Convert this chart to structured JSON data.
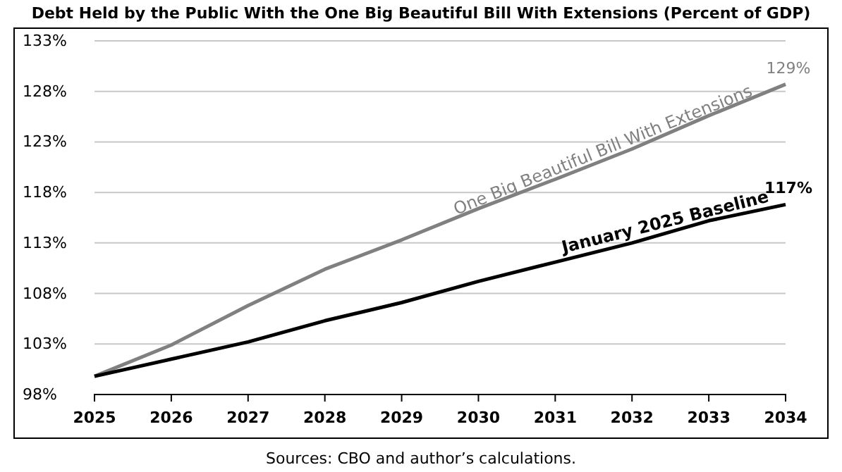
{
  "chart_data": {
    "type": "line",
    "title": "Debt Held by the Public With the One Big Beautiful Bill With Extensions (Percent of GDP)",
    "annotations": [
      "Sources: CBO and author’s calculations."
    ],
    "x": [
      2025,
      2026,
      2027,
      2028,
      2029,
      2030,
      2031,
      2032,
      2033,
      2034
    ],
    "series": [
      {
        "name": "One Big Beautiful Bill With Extensions",
        "color": "#808080",
        "values": [
          99.8,
          102.9,
          106.8,
          110.4,
          113.3,
          116.4,
          119.3,
          122.3,
          125.6,
          128.7
        ],
        "value_labels": [
          null,
          null,
          null,
          null,
          null,
          null,
          null,
          null,
          null,
          "129%"
        ]
      },
      {
        "name": "January 2025 Baseline",
        "color": "#000000",
        "values": [
          99.8,
          101.5,
          103.2,
          105.3,
          107.1,
          109.2,
          111.1,
          113.0,
          115.2,
          116.8
        ],
        "value_labels": [
          null,
          null,
          null,
          null,
          null,
          null,
          null,
          null,
          null,
          "117%"
        ]
      }
    ],
    "xlim": [
      2025,
      2034
    ],
    "xticks": [
      2025,
      2026,
      2027,
      2028,
      2029,
      2030,
      2031,
      2032,
      2033,
      2034
    ],
    "ylim": [
      98,
      133
    ],
    "yticks": [
      {
        "value": 98,
        "label": "98%"
      },
      {
        "value": 103,
        "label": "103%"
      },
      {
        "value": 108,
        "label": "108%"
      },
      {
        "value": 113,
        "label": "113%"
      },
      {
        "value": 118,
        "label": "118%"
      },
      {
        "value": 123,
        "label": "123%"
      },
      {
        "value": 128,
        "label": "128%"
      },
      {
        "value": 133,
        "label": "133%"
      }
    ],
    "grid": "y",
    "marker": "none",
    "line_style": "solid"
  }
}
